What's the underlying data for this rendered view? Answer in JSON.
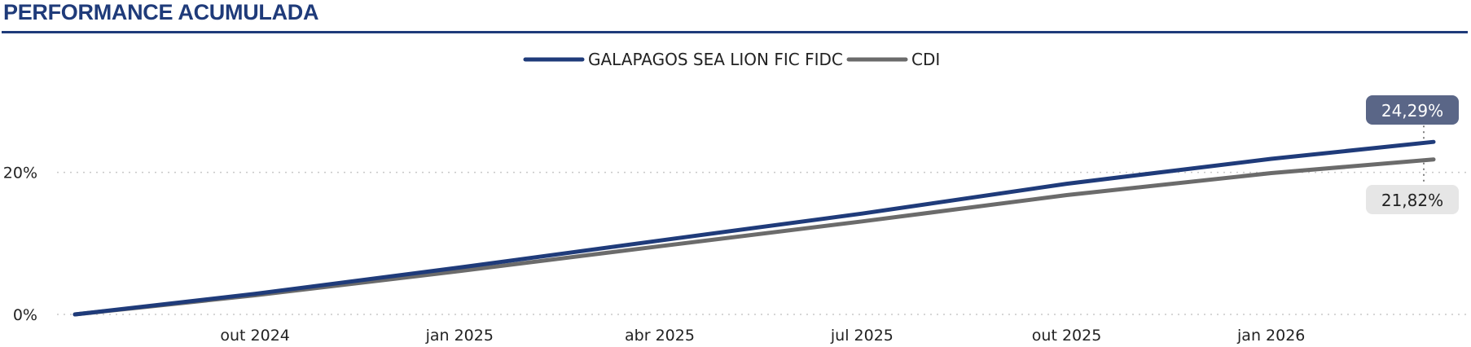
{
  "header": {
    "title": "PERFORMANCE ACUMULADA"
  },
  "colors": {
    "fund": "#1f3b7a",
    "cdi": "#6b6b6b",
    "fund_badge": "#5a6687",
    "cdi_badge": "#e6e6e6",
    "grid": "#c8c8c8"
  },
  "chart_data": {
    "type": "line",
    "title": "PERFORMANCE ACUMULADA",
    "xlabel": "",
    "ylabel": "",
    "x_range": [
      "2024-07-12",
      "2026-03-15"
    ],
    "x_ticks": [
      {
        "label": "out 2024",
        "date": "2024-10-01"
      },
      {
        "label": "jan 2025",
        "date": "2025-01-01"
      },
      {
        "label": "abr 2025",
        "date": "2025-04-01"
      },
      {
        "label": "jul 2025",
        "date": "2025-07-01"
      },
      {
        "label": "out 2025",
        "date": "2025-10-01"
      },
      {
        "label": "jan 2026",
        "date": "2026-01-01"
      }
    ],
    "y_ticks": [
      {
        "label": "0%",
        "value": 0
      },
      {
        "label": "20%",
        "value": 20
      }
    ],
    "ylim": [
      0,
      25
    ],
    "legend_position": "top-center",
    "series": [
      {
        "name": "GALAPAGOS SEA LION FIC FIDC",
        "key": "fund",
        "points": [
          [
            "2024-07-12",
            0
          ],
          [
            "2024-10-01",
            2.9
          ],
          [
            "2025-01-01",
            6.6
          ],
          [
            "2025-04-01",
            10.4
          ],
          [
            "2025-07-01",
            14.2
          ],
          [
            "2025-10-01",
            18.4
          ],
          [
            "2026-01-01",
            21.9
          ],
          [
            "2026-03-15",
            24.29
          ]
        ],
        "end_label": "24,29%"
      },
      {
        "name": "CDI",
        "key": "cdi",
        "points": [
          [
            "2024-07-12",
            0
          ],
          [
            "2024-10-01",
            2.7
          ],
          [
            "2025-01-01",
            6.1
          ],
          [
            "2025-04-01",
            9.6
          ],
          [
            "2025-07-01",
            13.1
          ],
          [
            "2025-10-01",
            16.8
          ],
          [
            "2026-01-01",
            19.9
          ],
          [
            "2026-03-15",
            21.82
          ]
        ],
        "end_label": "21,82%"
      }
    ]
  }
}
